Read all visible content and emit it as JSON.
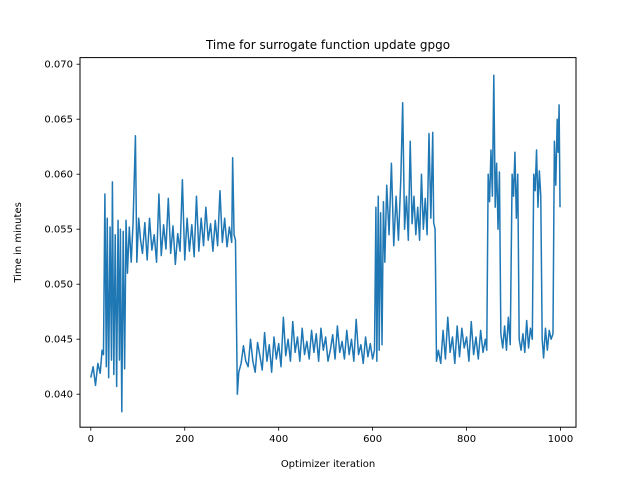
{
  "chart_data": {
    "type": "line",
    "title": "Time for surrogate function update gpgo",
    "xlabel": "Optimizer iteration",
    "ylabel": "Time in minutes",
    "xlim": [
      -23,
      1033
    ],
    "ylim": [
      0.037,
      0.0706
    ],
    "xticks": [
      0,
      200,
      400,
      600,
      800,
      1000
    ],
    "yticks": [
      0.04,
      0.045,
      0.05,
      0.055,
      0.06,
      0.065,
      0.07
    ],
    "xtick_labels": [
      "0",
      "200",
      "400",
      "600",
      "800",
      "1000"
    ],
    "ytick_labels": [
      "0.040",
      "0.045",
      "0.050",
      "0.055",
      "0.060",
      "0.065",
      "0.070"
    ],
    "grid": false,
    "series": [
      {
        "color": "#1f77b4",
        "points": [
          [
            0,
            0.0415
          ],
          [
            5,
            0.0425
          ],
          [
            10,
            0.0408
          ],
          [
            15,
            0.0428
          ],
          [
            20,
            0.0419
          ],
          [
            24,
            0.044
          ],
          [
            27,
            0.0436
          ],
          [
            30,
            0.0582
          ],
          [
            33,
            0.0425
          ],
          [
            35,
            0.056
          ],
          [
            38,
            0.0415
          ],
          [
            41,
            0.0552
          ],
          [
            44,
            0.0431
          ],
          [
            46,
            0.0593
          ],
          [
            49,
            0.0418
          ],
          [
            52,
            0.0545
          ],
          [
            55,
            0.0407
          ],
          [
            58,
            0.0558
          ],
          [
            61,
            0.0431
          ],
          [
            63,
            0.055
          ],
          [
            66,
            0.0384
          ],
          [
            69,
            0.0548
          ],
          [
            72,
            0.0423
          ],
          [
            75,
            0.0558
          ],
          [
            78,
            0.051
          ],
          [
            82,
            0.0552
          ],
          [
            86,
            0.052
          ],
          [
            90,
            0.0556
          ],
          [
            95,
            0.0635
          ],
          [
            98,
            0.052
          ],
          [
            102,
            0.056
          ],
          [
            106,
            0.054
          ],
          [
            110,
            0.0528
          ],
          [
            115,
            0.0556
          ],
          [
            120,
            0.0522
          ],
          [
            125,
            0.056
          ],
          [
            130,
            0.0531
          ],
          [
            135,
            0.0545
          ],
          [
            140,
            0.052
          ],
          [
            145,
            0.0582
          ],
          [
            150,
            0.0526
          ],
          [
            155,
            0.0554
          ],
          [
            160,
            0.0532
          ],
          [
            165,
            0.0578
          ],
          [
            170,
            0.0528
          ],
          [
            175,
            0.0553
          ],
          [
            180,
            0.0518
          ],
          [
            185,
            0.0546
          ],
          [
            190,
            0.053
          ],
          [
            195,
            0.0595
          ],
          [
            200,
            0.0522
          ],
          [
            205,
            0.056
          ],
          [
            210,
            0.053
          ],
          [
            215,
            0.0554
          ],
          [
            220,
            0.0525
          ],
          [
            225,
            0.058
          ],
          [
            230,
            0.053
          ],
          [
            235,
            0.056
          ],
          [
            240,
            0.0535
          ],
          [
            245,
            0.057
          ],
          [
            250,
            0.054
          ],
          [
            255,
            0.0555
          ],
          [
            260,
            0.053
          ],
          [
            265,
            0.0558
          ],
          [
            270,
            0.0535
          ],
          [
            275,
            0.0585
          ],
          [
            280,
            0.0538
          ],
          [
            285,
            0.056
          ],
          [
            290,
            0.0534
          ],
          [
            295,
            0.0552
          ],
          [
            300,
            0.0538
          ],
          [
            302,
            0.0615
          ],
          [
            305,
            0.0545
          ],
          [
            308,
            0.054
          ],
          [
            312,
            0.04
          ],
          [
            315,
            0.042
          ],
          [
            320,
            0.0428
          ],
          [
            325,
            0.0444
          ],
          [
            330,
            0.043
          ],
          [
            335,
            0.0425
          ],
          [
            340,
            0.045
          ],
          [
            345,
            0.043
          ],
          [
            350,
            0.042
          ],
          [
            355,
            0.0447
          ],
          [
            360,
            0.0435
          ],
          [
            365,
            0.0422
          ],
          [
            370,
            0.0456
          ],
          [
            375,
            0.043
          ],
          [
            380,
            0.0445
          ],
          [
            385,
            0.042
          ],
          [
            390,
            0.0452
          ],
          [
            395,
            0.0432
          ],
          [
            400,
            0.0446
          ],
          [
            405,
            0.0425
          ],
          [
            410,
            0.047
          ],
          [
            415,
            0.0435
          ],
          [
            420,
            0.045
          ],
          [
            425,
            0.043
          ],
          [
            430,
            0.0466
          ],
          [
            435,
            0.0438
          ],
          [
            440,
            0.0452
          ],
          [
            445,
            0.043
          ],
          [
            450,
            0.046
          ],
          [
            455,
            0.0436
          ],
          [
            460,
            0.0448
          ],
          [
            465,
            0.0432
          ],
          [
            470,
            0.0458
          ],
          [
            475,
            0.0438
          ],
          [
            480,
            0.0455
          ],
          [
            485,
            0.043
          ],
          [
            490,
            0.046
          ],
          [
            495,
            0.044
          ],
          [
            500,
            0.0452
          ],
          [
            505,
            0.043
          ],
          [
            510,
            0.044
          ],
          [
            515,
            0.0454
          ],
          [
            520,
            0.0432
          ],
          [
            525,
            0.0462
          ],
          [
            530,
            0.0438
          ],
          [
            535,
            0.0448
          ],
          [
            540,
            0.0432
          ],
          [
            545,
            0.0458
          ],
          [
            550,
            0.0436
          ],
          [
            555,
            0.045
          ],
          [
            560,
            0.043
          ],
          [
            565,
            0.0468
          ],
          [
            570,
            0.0436
          ],
          [
            575,
            0.0445
          ],
          [
            580,
            0.0428
          ],
          [
            585,
            0.0452
          ],
          [
            590,
            0.0434
          ],
          [
            595,
            0.0446
          ],
          [
            600,
            0.0432
          ],
          [
            604,
            0.044
          ],
          [
            607,
            0.057
          ],
          [
            609,
            0.043
          ],
          [
            612,
            0.058
          ],
          [
            614,
            0.044
          ],
          [
            617,
            0.0565
          ],
          [
            620,
            0.0445
          ],
          [
            623,
            0.0575
          ],
          [
            626,
            0.052
          ],
          [
            630,
            0.059
          ],
          [
            635,
            0.0545
          ],
          [
            640,
            0.061
          ],
          [
            645,
            0.0535
          ],
          [
            650,
            0.058
          ],
          [
            655,
            0.054
          ],
          [
            660,
            0.0595
          ],
          [
            664,
            0.0665
          ],
          [
            668,
            0.055
          ],
          [
            672,
            0.058
          ],
          [
            676,
            0.054
          ],
          [
            680,
            0.063
          ],
          [
            684,
            0.0555
          ],
          [
            688,
            0.058
          ],
          [
            692,
            0.0545
          ],
          [
            696,
            0.057
          ],
          [
            700,
            0.054
          ],
          [
            704,
            0.06
          ],
          [
            708,
            0.055
          ],
          [
            712,
            0.0578
          ],
          [
            716,
            0.0545
          ],
          [
            720,
            0.0637
          ],
          [
            724,
            0.056
          ],
          [
            728,
            0.0638
          ],
          [
            730,
            0.0556
          ],
          [
            733,
            0.055
          ],
          [
            736,
            0.043
          ],
          [
            740,
            0.044
          ],
          [
            745,
            0.0428
          ],
          [
            750,
            0.0458
          ],
          [
            755,
            0.0432
          ],
          [
            760,
            0.047
          ],
          [
            765,
            0.0438
          ],
          [
            770,
            0.0452
          ],
          [
            775,
            0.0428
          ],
          [
            780,
            0.0462
          ],
          [
            785,
            0.0434
          ],
          [
            790,
            0.046
          ],
          [
            795,
            0.0442
          ],
          [
            800,
            0.0452
          ],
          [
            805,
            0.043
          ],
          [
            810,
            0.0466
          ],
          [
            815,
            0.0436
          ],
          [
            820,
            0.0452
          ],
          [
            825,
            0.0432
          ],
          [
            830,
            0.0458
          ],
          [
            835,
            0.0438
          ],
          [
            840,
            0.045
          ],
          [
            843,
            0.044
          ],
          [
            846,
            0.06
          ],
          [
            849,
            0.0575
          ],
          [
            852,
            0.0622
          ],
          [
            855,
            0.058
          ],
          [
            858,
            0.069
          ],
          [
            861,
            0.057
          ],
          [
            864,
            0.061
          ],
          [
            867,
            0.055
          ],
          [
            870,
            0.0602
          ],
          [
            873,
            0.0455
          ],
          [
            877,
            0.0442
          ],
          [
            881,
            0.0462
          ],
          [
            885,
            0.044
          ],
          [
            889,
            0.047
          ],
          [
            893,
            0.0445
          ],
          [
            897,
            0.06
          ],
          [
            900,
            0.058
          ],
          [
            903,
            0.062
          ],
          [
            906,
            0.056
          ],
          [
            909,
            0.06
          ],
          [
            912,
            0.045
          ],
          [
            916,
            0.044
          ],
          [
            920,
            0.0455
          ],
          [
            924,
            0.0438
          ],
          [
            928,
            0.0467
          ],
          [
            932,
            0.0442
          ],
          [
            936,
            0.046
          ],
          [
            940,
            0.045
          ],
          [
            943,
            0.06
          ],
          [
            946,
            0.0585
          ],
          [
            949,
            0.0622
          ],
          [
            952,
            0.057
          ],
          [
            955,
            0.0603
          ],
          [
            958,
            0.058
          ],
          [
            961,
            0.045
          ],
          [
            964,
            0.0433
          ],
          [
            968,
            0.046
          ],
          [
            972,
            0.044
          ],
          [
            976,
            0.0458
          ],
          [
            980,
            0.045
          ],
          [
            984,
            0.0455
          ],
          [
            987,
            0.063
          ],
          [
            990,
            0.059
          ],
          [
            993,
            0.065
          ],
          [
            995,
            0.062
          ],
          [
            997,
            0.0663
          ],
          [
            999,
            0.057
          ]
        ]
      }
    ]
  }
}
